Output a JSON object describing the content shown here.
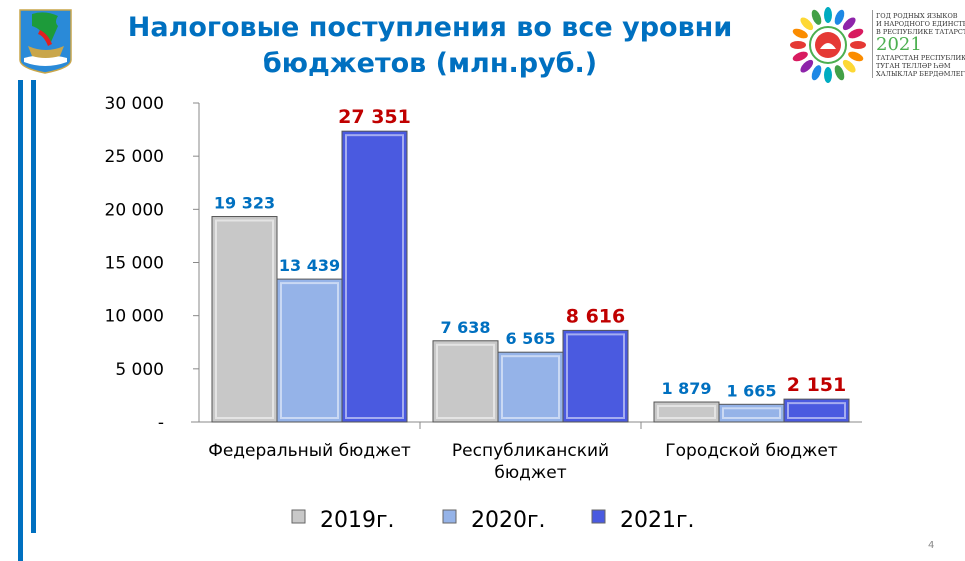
{
  "title": "Налоговые поступления во все уровни бюджетов (млн.руб.)",
  "title_lines": [
    "Налоговые поступления во все уровни",
    "бюджетов (млн.руб.)"
  ],
  "logo_right": {
    "lines": [
      "ГОД РОДНЫХ ЯЗЫКОВ",
      "И НАРОДНОГО ЕДИНСТВА",
      "В РЕСПУБЛИКЕ ТАТАРСТАН",
      "ТАТАРСТАН РЕСПУБЛИКАСЫ",
      "ТУГАН ТЕЛЛӘР ҺӘМ",
      "ХАЛЫКЛАР БЕРДӘМЛЕГЕ ЕЛЫ"
    ],
    "year": "2021"
  },
  "page_number": "4",
  "colors": {
    "title": "#0070c0",
    "s2019": "#c8c8c8",
    "s2020": "#95b3e8",
    "s2021": "#4a5ae0",
    "label_blue": "#0070c0",
    "label_red": "#c00000"
  },
  "chart_data": {
    "type": "bar",
    "title": "Налоговые поступления во все уровни бюджетов (млн.руб.)",
    "categories": [
      [
        "Федеральный бюджет"
      ],
      [
        "Республиканский",
        "бюджет"
      ],
      [
        "Городской бюджет"
      ]
    ],
    "series": [
      {
        "name": "2019г.",
        "values": [
          19323,
          7638,
          1879
        ],
        "labels": [
          "19 323",
          "7 638",
          "1 879"
        ]
      },
      {
        "name": "2020г.",
        "values": [
          13439,
          6565,
          1665
        ],
        "labels": [
          "13 439",
          "6 565",
          "1 665"
        ]
      },
      {
        "name": "2021г.",
        "values": [
          27351,
          8616,
          2151
        ],
        "labels": [
          "27 351",
          "8 616",
          "2 151"
        ]
      }
    ],
    "yticks": [
      0,
      5000,
      10000,
      15000,
      20000,
      25000,
      30000
    ],
    "ytick_labels": [
      "-",
      "5 000",
      "10 000",
      "15 000",
      "20 000",
      "25 000",
      "30 000"
    ],
    "ylim": [
      0,
      30000
    ],
    "legend": "bottom",
    "grid": false
  }
}
